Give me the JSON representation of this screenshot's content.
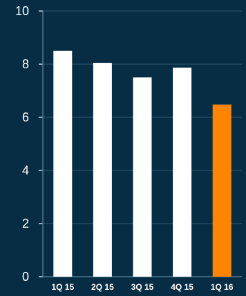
{
  "chart_data": {
    "type": "bar",
    "categories": [
      "1Q 15",
      "2Q 15",
      "3Q 15",
      "4Q 15",
      "1Q 16"
    ],
    "values": [
      8.5,
      8.05,
      7.5,
      7.87,
      6.48
    ],
    "ylim": [
      0,
      10
    ],
    "yticks": [
      0,
      2,
      4,
      6,
      8,
      10
    ],
    "grid": true,
    "title": "",
    "xlabel": "",
    "ylabel": "",
    "colors": {
      "background": "#062d44",
      "bar_default": "#ffffff",
      "bar_highlight": "#ff8400",
      "text": "#ffffff",
      "grid": "#2f5a73"
    },
    "highlight_index": 4
  }
}
